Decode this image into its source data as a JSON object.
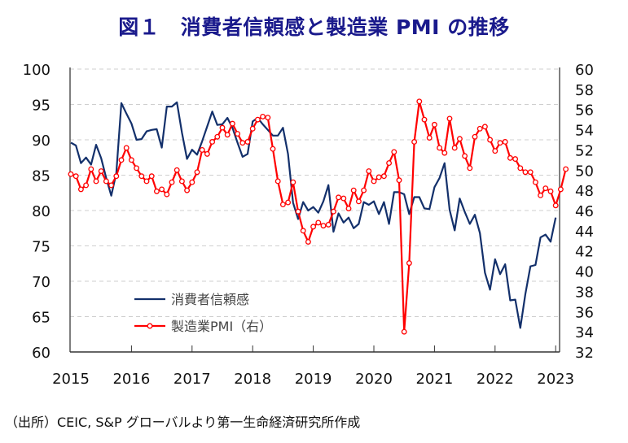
{
  "chart_data": {
    "type": "line",
    "title": "図１　消費者信頼感と製造業 PMI の推移",
    "source": "（出所）CEIC, S&P グローバルより第一生命経済研究所作成",
    "xlabel": "",
    "ylabel_left": "",
    "ylabel_right": "",
    "x_tick_labels": [
      "2015",
      "2016",
      "2017",
      "2018",
      "2019",
      "2020",
      "2021",
      "2022",
      "2023"
    ],
    "x_start": "2015-01",
    "x_range_years": [
      2015,
      2023.1
    ],
    "y_left": {
      "range": [
        60,
        100
      ],
      "ticks": [
        100,
        95,
        90,
        85,
        80,
        75,
        70,
        65,
        60
      ]
    },
    "y_right": {
      "range": [
        32,
        60
      ],
      "ticks": [
        60,
        58,
        56,
        54,
        52,
        50,
        48,
        46,
        44,
        42,
        40,
        38,
        36,
        34,
        32
      ]
    },
    "grid": "horizontal dashed",
    "legend": {
      "placement": "bottom-left-inside"
    },
    "series": [
      {
        "name": "消費者信頼感",
        "axis": "left",
        "color": "#13306b",
        "marker": "none",
        "values": [
          89.6,
          89.2,
          86.7,
          87.5,
          86.5,
          89.3,
          87.4,
          84.6,
          82.1,
          85.3,
          95.2,
          93.7,
          92.3,
          90.0,
          90.1,
          91.2,
          91.4,
          91.5,
          88.9,
          94.7,
          94.7,
          95.3,
          91.0,
          87.3,
          88.6,
          87.9,
          89.8,
          91.9,
          94.0,
          92.1,
          92.2,
          93.1,
          91.7,
          89.6,
          87.6,
          88.0,
          92.6,
          93.1,
          92.2,
          91.4,
          90.6,
          90.6,
          91.7,
          88.0,
          81.1,
          78.8,
          81.2,
          80.0,
          80.5,
          79.7,
          81.3,
          83.6,
          77.0,
          79.6,
          78.3,
          79.0,
          77.5,
          78.1,
          81.2,
          80.8,
          81.3,
          79.5,
          81.2,
          78.1,
          82.6,
          82.6,
          82.3,
          79.5,
          81.9,
          81.9,
          80.3,
          80.2,
          83.3,
          84.6,
          86.7,
          80.1,
          77.2,
          81.7,
          79.8,
          78.1,
          79.4,
          76.8,
          71.2,
          68.8,
          73.1,
          71.0,
          72.4,
          67.3,
          67.4,
          63.4,
          68.2,
          72.1,
          72.3,
          76.2,
          76.6,
          75.6,
          79.0
        ]
      },
      {
        "name": "製造業PMI（右）",
        "axis": "right",
        "color": "#ff0000",
        "marker": "circle",
        "values": [
          49.6,
          49.4,
          48.1,
          48.5,
          50.1,
          48.9,
          49.9,
          48.9,
          48.5,
          49.4,
          51.0,
          52.2,
          51.0,
          50.2,
          49.4,
          48.9,
          49.4,
          47.9,
          48.1,
          47.6,
          48.8,
          50.0,
          48.9,
          48.0,
          48.8,
          49.8,
          52.0,
          51.6,
          52.8,
          53.3,
          54.2,
          53.5,
          54.6,
          53.6,
          52.7,
          52.8,
          54.1,
          55.0,
          55.3,
          55.2,
          52.1,
          48.9,
          46.6,
          46.8,
          48.8,
          45.9,
          44.0,
          42.9,
          44.4,
          44.8,
          44.5,
          44.6,
          45.9,
          47.3,
          47.2,
          46.2,
          48.0,
          46.9,
          48.0,
          49.9,
          48.9,
          49.3,
          49.4,
          50.7,
          51.8,
          49.0,
          34.0,
          40.8,
          52.8,
          56.8,
          55.0,
          53.2,
          54.5,
          52.2,
          51.7,
          55.1,
          52.2,
          53.1,
          51.4,
          50.2,
          53.3,
          54.1,
          54.3,
          53.0,
          51.9,
          52.7,
          52.8,
          51.2,
          51.1,
          50.2,
          49.8,
          49.8,
          48.8,
          47.5,
          48.2,
          47.9,
          46.5,
          48.1,
          50.1
        ]
      }
    ]
  }
}
